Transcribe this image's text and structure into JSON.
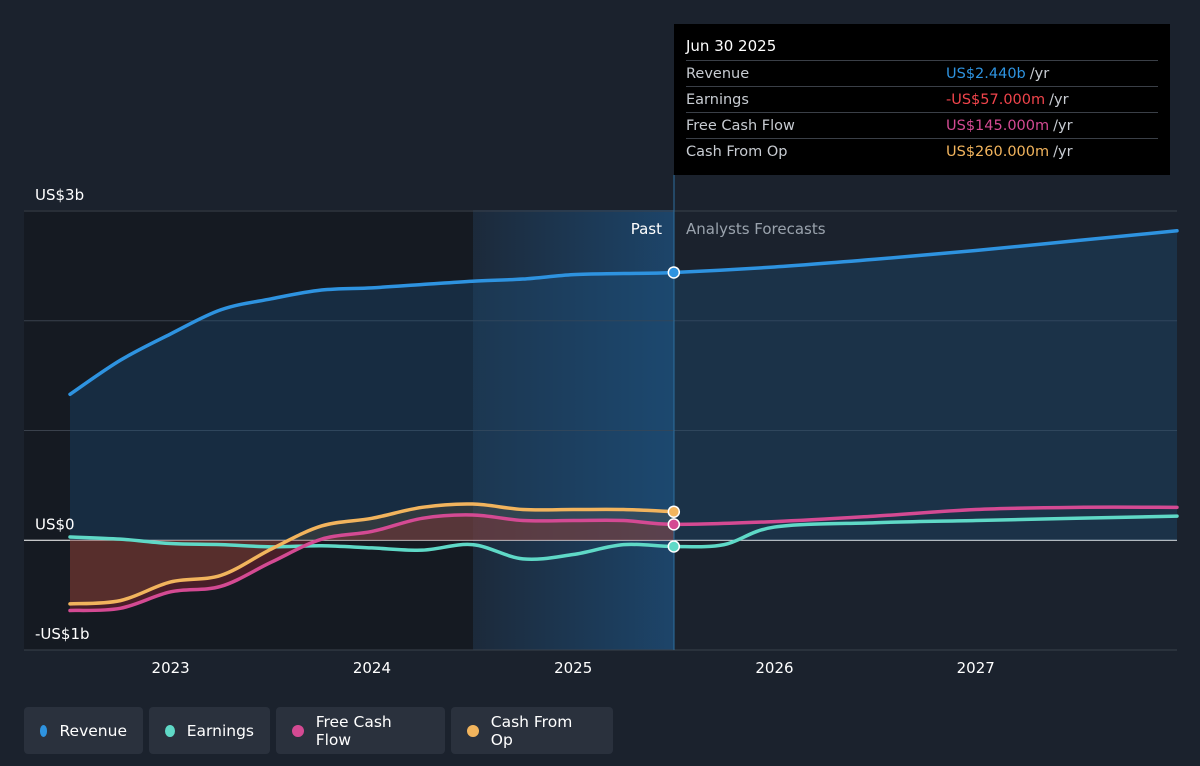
{
  "tooltip": {
    "date": "Jun 30 2025",
    "rows": [
      {
        "label": "Revenue",
        "value": "US$2.440b",
        "unit": "/yr",
        "color": "#2e93e0"
      },
      {
        "label": "Earnings",
        "value": "-US$57.000m",
        "unit": "/yr",
        "color": "#f0444b"
      },
      {
        "label": "Free Cash Flow",
        "value": "US$145.000m",
        "unit": "/yr",
        "color": "#d44a93"
      },
      {
        "label": "Cash From Op",
        "value": "US$260.000m",
        "unit": "/yr",
        "color": "#f2b45d"
      }
    ]
  },
  "legend": [
    {
      "label": "Revenue",
      "color": "#2e93e0"
    },
    {
      "label": "Earnings",
      "color": "#5fd9c7"
    },
    {
      "label": "Free Cash Flow",
      "color": "#d44a93"
    },
    {
      "label": "Cash From Op",
      "color": "#f2b45d"
    }
  ],
  "chart_data": {
    "type": "line",
    "y_tick_labels": [
      "US$3b",
      "US$0",
      "-US$1b"
    ],
    "x_tick_labels": [
      "2023",
      "2024",
      "2025",
      "2026",
      "2027"
    ],
    "ylim": [
      -1.0,
      3.0
    ],
    "xlim": [
      2022.5,
      2028.0
    ],
    "past_label": "Past",
    "forecast_label": "Analysts Forecasts",
    "divider_x": 2025.5,
    "series": [
      {
        "name": "Revenue",
        "color": "#2e93e0",
        "x": [
          2022.5,
          2022.75,
          2023.0,
          2023.25,
          2023.5,
          2023.75,
          2024.0,
          2024.25,
          2024.5,
          2024.75,
          2025.0,
          2025.25,
          2025.5,
          2026.0,
          2026.5,
          2027.0,
          2027.5,
          2028.0
        ],
        "y": [
          1.33,
          1.64,
          1.88,
          2.1,
          2.2,
          2.28,
          2.3,
          2.33,
          2.36,
          2.38,
          2.42,
          2.43,
          2.44,
          2.49,
          2.56,
          2.64,
          2.73,
          2.82
        ]
      },
      {
        "name": "Earnings",
        "color": "#5fd9c7",
        "x": [
          2022.5,
          2022.75,
          2023.0,
          2023.25,
          2023.5,
          2023.75,
          2024.0,
          2024.25,
          2024.5,
          2024.75,
          2025.0,
          2025.25,
          2025.5,
          2025.75,
          2026.0,
          2026.5,
          2027.0,
          2027.5,
          2028.0
        ],
        "y": [
          0.03,
          0.01,
          -0.03,
          -0.04,
          -0.06,
          -0.05,
          -0.07,
          -0.09,
          -0.04,
          -0.17,
          -0.13,
          -0.04,
          -0.057,
          -0.04,
          0.12,
          0.16,
          0.18,
          0.2,
          0.22
        ]
      },
      {
        "name": "Free Cash Flow",
        "color": "#d44a93",
        "x": [
          2022.5,
          2022.75,
          2023.0,
          2023.25,
          2023.5,
          2023.75,
          2024.0,
          2024.25,
          2024.5,
          2024.75,
          2025.0,
          2025.25,
          2025.5,
          2026.0,
          2026.5,
          2027.0,
          2027.5,
          2028.0
        ],
        "y": [
          -0.64,
          -0.62,
          -0.47,
          -0.42,
          -0.2,
          0.01,
          0.08,
          0.2,
          0.23,
          0.18,
          0.18,
          0.18,
          0.145,
          0.17,
          0.22,
          0.28,
          0.3,
          0.3
        ]
      },
      {
        "name": "Cash From Op",
        "color": "#f2b45d",
        "x": [
          2022.5,
          2022.75,
          2023.0,
          2023.25,
          2023.5,
          2023.75,
          2024.0,
          2024.25,
          2024.5,
          2024.75,
          2025.0,
          2025.25,
          2025.5
        ],
        "y": [
          -0.58,
          -0.55,
          -0.38,
          -0.32,
          -0.08,
          0.13,
          0.2,
          0.3,
          0.33,
          0.28,
          0.28,
          0.28,
          0.26
        ]
      }
    ]
  }
}
